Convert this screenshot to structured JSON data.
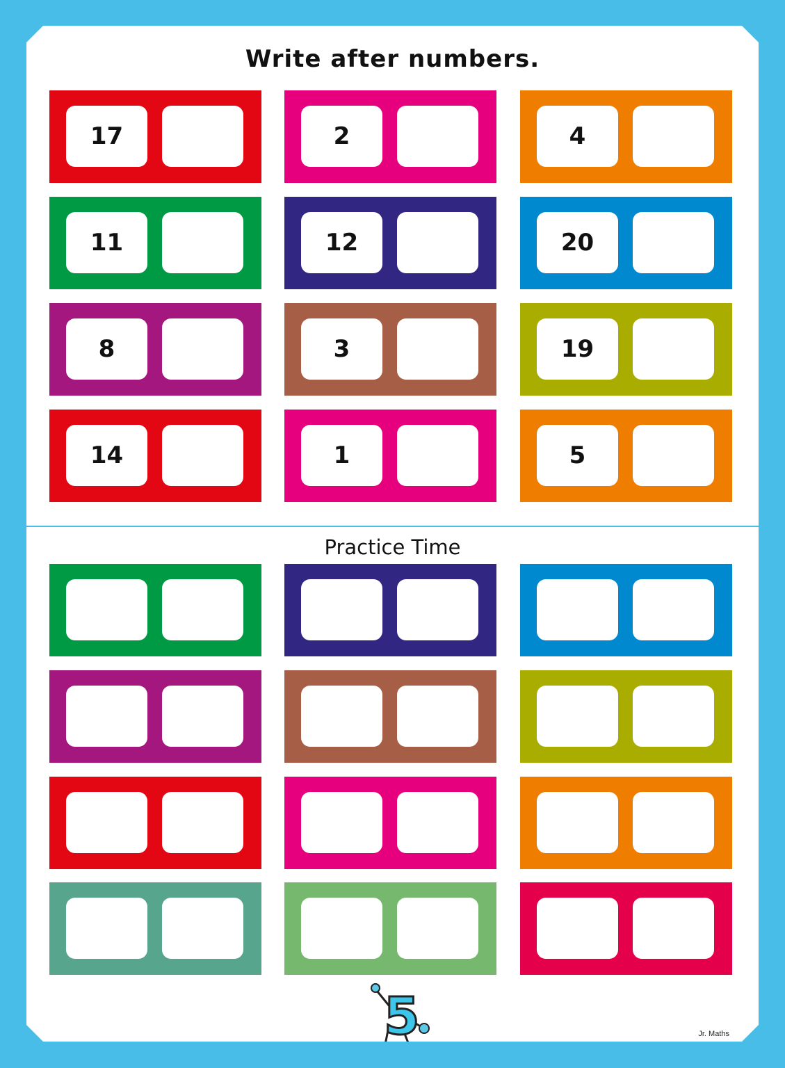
{
  "worksheet": {
    "title": "Write after numbers.",
    "practice_title": "Practice Time",
    "brand": "Jr. Maths",
    "border_color": "#47bde8",
    "mascot_icon": "number-5-mascot"
  },
  "exercises": [
    {
      "number": "17",
      "color": "#e30613"
    },
    {
      "number": "2",
      "color": "#e6007e"
    },
    {
      "number": "4",
      "color": "#ef7d00"
    },
    {
      "number": "11",
      "color": "#009a44"
    },
    {
      "number": "12",
      "color": "#312783"
    },
    {
      "number": "20",
      "color": "#0089cf"
    },
    {
      "number": "8",
      "color": "#a3177f"
    },
    {
      "number": "3",
      "color": "#a65e46"
    },
    {
      "number": "19",
      "color": "#a9ad00"
    },
    {
      "number": "14",
      "color": "#e30613"
    },
    {
      "number": "1",
      "color": "#e6007e"
    },
    {
      "number": "5",
      "color": "#ef7d00"
    }
  ],
  "practice": [
    {
      "color": "#009a44"
    },
    {
      "color": "#312783"
    },
    {
      "color": "#0089cf"
    },
    {
      "color": "#a3177f"
    },
    {
      "color": "#a65e46"
    },
    {
      "color": "#a9ad00"
    },
    {
      "color": "#e30613"
    },
    {
      "color": "#e6007e"
    },
    {
      "color": "#ef7d00"
    },
    {
      "color": "#58a58e"
    },
    {
      "color": "#76b86e"
    },
    {
      "color": "#e4004b"
    }
  ]
}
